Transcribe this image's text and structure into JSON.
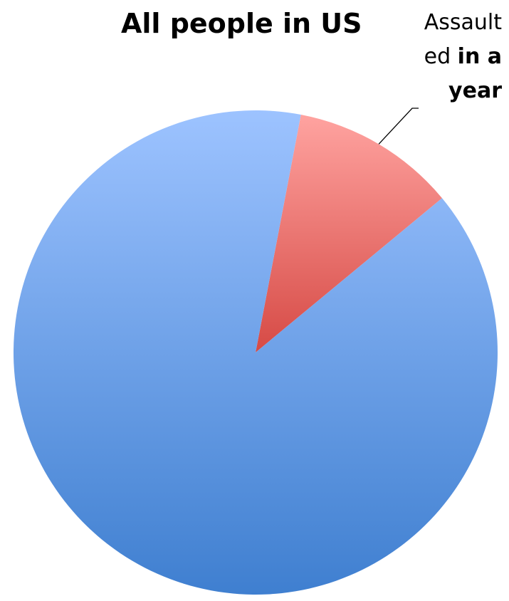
{
  "chart_data": {
    "type": "pie",
    "title": "All people in US",
    "slices": [
      {
        "label": "",
        "value": 89,
        "color": "#4a86d6"
      },
      {
        "label": "Assaulted in a year",
        "value": 11,
        "color": "#d64a47"
      }
    ],
    "slice_label_lines": [
      {
        "normal": "Assault",
        "bold": ""
      },
      {
        "normal": "ed ",
        "bold": "in a"
      },
      {
        "normal": "",
        "bold": "year"
      }
    ],
    "legend": "none"
  }
}
